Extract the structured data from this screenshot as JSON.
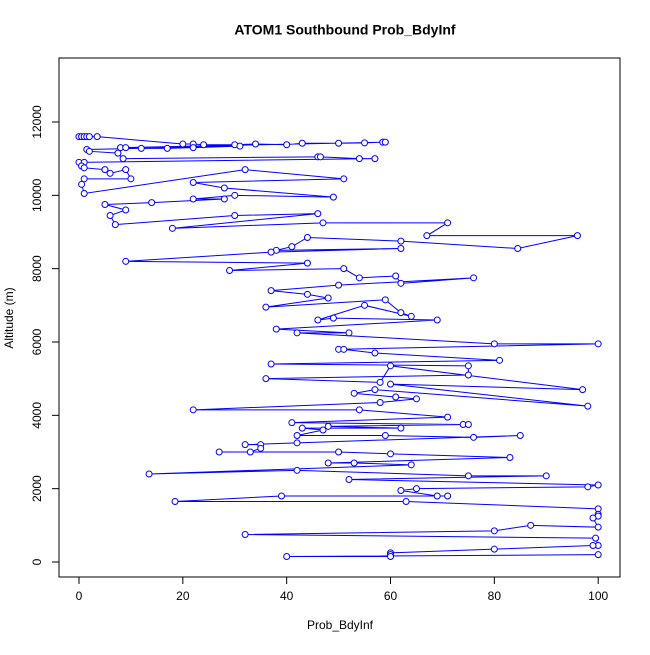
{
  "chart_data": {
    "type": "line",
    "title": "ATOM1 Southbound Prob_BdyInf",
    "x_label": "Prob_BdyInf",
    "y_label": "Altitude (m)",
    "color": "#0000ff",
    "x": [
      0,
      0.5,
      1,
      1.5,
      2,
      3.5,
      20,
      22,
      24,
      30,
      34,
      40,
      43,
      50,
      55,
      58.5,
      59,
      8,
      9,
      12,
      17,
      22,
      31,
      1.5,
      2,
      7.5,
      8.5,
      46,
      46.5,
      54,
      57,
      0,
      1,
      0.5,
      1,
      5,
      6,
      9,
      10,
      1,
      0.5,
      1,
      32,
      51,
      22,
      28,
      49,
      30,
      22,
      28,
      14,
      5,
      9,
      6,
      7,
      30,
      46,
      18,
      47,
      71,
      67,
      96,
      84.5,
      62,
      44,
      41,
      38,
      62,
      37,
      9,
      44,
      29,
      51,
      54,
      61,
      62,
      76,
      50,
      37,
      44,
      48,
      36,
      59,
      62,
      64,
      55,
      46,
      49,
      69,
      38,
      52,
      42,
      80,
      100,
      50,
      51,
      57,
      81,
      37,
      75,
      75,
      36,
      58,
      60,
      97,
      60,
      98,
      57,
      53,
      61,
      65,
      58,
      22,
      54,
      71,
      41,
      74,
      75,
      48,
      62,
      43,
      47,
      42,
      59,
      76,
      85,
      42,
      32,
      35,
      35,
      33,
      27,
      50,
      60,
      83,
      48,
      53,
      64,
      13.5,
      42,
      75,
      90,
      52,
      100,
      98,
      65,
      62,
      69,
      71,
      39,
      18.5,
      63,
      100,
      100,
      100,
      99,
      100,
      87,
      80,
      32,
      99.5,
      100,
      99,
      80,
      60,
      60,
      60,
      40,
      100
    ],
    "values": [
      11600,
      11600,
      11600,
      11600,
      11600,
      11600,
      11400,
      11400,
      11380,
      11380,
      11400,
      11380,
      11420,
      11420,
      11430,
      11450,
      11450,
      11300,
      11300,
      11280,
      11280,
      11300,
      11340,
      11250,
      11200,
      11150,
      11000,
      11050,
      11050,
      11000,
      11000,
      10900,
      10900,
      10800,
      10750,
      10700,
      10600,
      10700,
      10450,
      10450,
      10300,
      10050,
      10700,
      10450,
      10350,
      10200,
      9950,
      10000,
      9900,
      9900,
      9800,
      9750,
      9600,
      9450,
      9200,
      9450,
      9500,
      9100,
      9250,
      9250,
      8900,
      8900,
      8550,
      8750,
      8850,
      8600,
      8500,
      8550,
      8450,
      8200,
      8150,
      7950,
      8000,
      7750,
      7800,
      7600,
      7750,
      7550,
      7400,
      7300,
      7200,
      6950,
      7150,
      6800,
      6700,
      7000,
      6600,
      6650,
      6600,
      6350,
      6250,
      6250,
      5950,
      5950,
      5800,
      5800,
      5700,
      5500,
      5400,
      5350,
      5100,
      5000,
      4900,
      5350,
      4700,
      4850,
      4250,
      4700,
      4600,
      4500,
      4450,
      4350,
      4150,
      4150,
      3950,
      3800,
      3750,
      3750,
      3700,
      3650,
      3650,
      3600,
      3450,
      3450,
      3400,
      3450,
      3250,
      3200,
      3200,
      3100,
      3000,
      3000,
      3000,
      2950,
      2850,
      2700,
      2700,
      2650,
      2400,
      2500,
      2350,
      2350,
      2250,
      2100,
      2050,
      2000,
      1950,
      1800,
      1800,
      1800,
      1650,
      1650,
      1450,
      1300,
      1250,
      1200,
      950,
      1000,
      850,
      750,
      650,
      450,
      450,
      350,
      250,
      200,
      150,
      150,
      200
    ],
    "xlim": [
      -3.85,
      104.2
    ],
    "ylim": [
      -409,
      13745
    ],
    "xticks": [
      0,
      20,
      40,
      60,
      80,
      100
    ],
    "yticks": [
      0,
      2000,
      4000,
      6000,
      8000,
      10000,
      12000
    ]
  }
}
